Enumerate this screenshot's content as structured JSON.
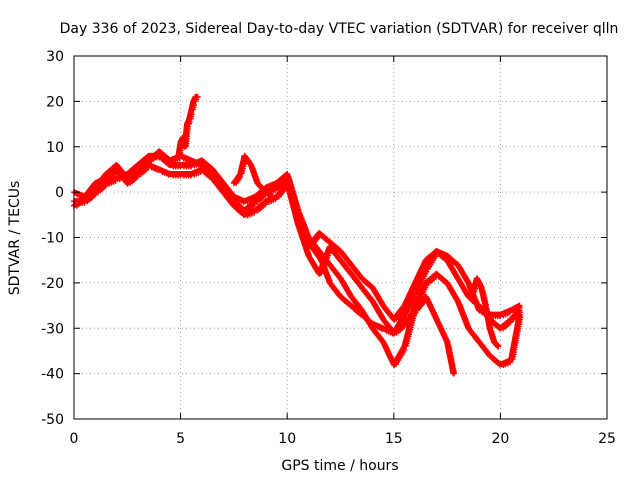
{
  "chart_data": {
    "type": "scatter",
    "title": "Day 336 of 2023, Sidereal Day-to-day VTEC variation (SDTVAR) for receiver qlln",
    "xlabel": "GPS time / hours",
    "ylabel": "SDTVAR / TECUs",
    "xlim": [
      0,
      25
    ],
    "ylim": [
      -50,
      30
    ],
    "x_ticks": [
      0,
      5,
      10,
      15,
      20,
      25
    ],
    "y_ticks": [
      -50,
      -40,
      -30,
      -20,
      -10,
      0,
      10,
      20,
      30
    ],
    "grid": true,
    "marker": "plus",
    "color": "#ff0000",
    "series": [
      {
        "x": [
          0.0,
          0.5,
          1.0,
          1.5,
          2.0,
          2.5,
          3.0,
          3.5,
          4.0,
          4.5,
          5.0,
          5.5,
          6.0,
          6.5,
          7.0,
          7.5,
          8.0,
          8.5,
          9.0,
          9.5,
          10.0,
          10.5,
          11.0,
          11.5,
          12.0,
          12.5,
          13.0,
          13.5,
          14.0,
          14.5,
          15.0,
          15.5,
          16.0,
          16.5,
          17.0,
          17.5,
          18.0,
          18.5,
          19.0,
          19.5,
          20.0,
          20.5,
          20.9
        ],
        "y": [
          -2,
          -2,
          0,
          2,
          3,
          4,
          6,
          8,
          8,
          6,
          6,
          6,
          7,
          5,
          2,
          -1,
          -2,
          -1,
          1,
          2,
          4,
          -4,
          -10,
          -13,
          -16,
          -19,
          -23,
          -26,
          -30,
          -33,
          -38,
          -34,
          -25,
          -20,
          -18,
          -20,
          -24,
          -30,
          -33,
          -36,
          -38,
          -37,
          -27
        ]
      },
      {
        "x": [
          0.0,
          0.5,
          1.0,
          1.5,
          2.0,
          2.5,
          3.0,
          3.5,
          4.0,
          4.5,
          5.0,
          5.5,
          6.0,
          6.5,
          7.0,
          7.5,
          8.0,
          8.5,
          9.0,
          9.5,
          10.0,
          10.5,
          11.0,
          11.5,
          12.0,
          12.5,
          13.0,
          13.5,
          14.0,
          14.5,
          15.0,
          15.5,
          16.0,
          16.5,
          17.0,
          17.5,
          18.0,
          18.5,
          19.0,
          19.5,
          20.0,
          20.5,
          20.9
        ],
        "y": [
          0,
          -1,
          2,
          3,
          5,
          2,
          4,
          6,
          5,
          4,
          4,
          4,
          5,
          3,
          0,
          -3,
          -5,
          -4,
          -2,
          -1,
          2,
          -7,
          -14,
          -18,
          -12,
          -15,
          -18,
          -21,
          -24,
          -28,
          -31,
          -27,
          -22,
          -17,
          -13,
          -15,
          -19,
          -23,
          -25,
          -28,
          -30,
          -28,
          -26
        ]
      },
      {
        "x": [
          0.0,
          0.5,
          1.0,
          1.5,
          2.0,
          2.5,
          3.0,
          3.5,
          4.0,
          4.5,
          5.0,
          5.5,
          6.0,
          6.5,
          7.0,
          7.5,
          8.0,
          8.5,
          9.0,
          9.5,
          10.0,
          10.5,
          11.0,
          11.5,
          12.0,
          12.5,
          13.0,
          13.5,
          14.0,
          14.5,
          15.0,
          15.5,
          16.0,
          16.5,
          17.0,
          17.5,
          18.0,
          18.5,
          19.0,
          19.5,
          20.0,
          20.5,
          20.9
        ],
        "y": [
          -3,
          -1,
          1,
          4,
          6,
          3,
          5,
          7,
          9,
          7,
          8,
          7,
          6,
          4,
          1,
          -2,
          -4,
          -2,
          0,
          1,
          3,
          -5,
          -12,
          -9,
          -11,
          -13,
          -16,
          -19,
          -21,
          -25,
          -28,
          -25,
          -20,
          -15,
          -13,
          -14,
          -16,
          -20,
          -26,
          -27,
          -27,
          -26,
          -25
        ]
      },
      {
        "x": [
          4.9,
          5.0,
          5.1,
          5.2,
          5.3,
          5.4,
          5.5,
          5.6,
          5.7,
          5.8
        ],
        "y": [
          8,
          11,
          12,
          10,
          15,
          16,
          18,
          20,
          21,
          21
        ]
      },
      {
        "x": [
          10.5,
          10.8,
          11.0,
          11.3,
          11.6,
          12.0,
          12.5,
          13.0,
          13.5,
          14.0,
          14.5,
          15.0,
          15.5,
          16.0,
          16.5,
          17.0,
          17.5,
          17.8
        ],
        "y": [
          -4,
          -8,
          -11,
          -13,
          -15,
          -20,
          -23,
          -25,
          -27,
          -29,
          -30,
          -31,
          -29,
          -26,
          -23,
          -28,
          -33,
          -40
        ]
      },
      {
        "x": [
          7.5,
          7.8,
          8.0,
          8.3,
          8.6,
          9.0,
          9.3
        ],
        "y": [
          2,
          4,
          8,
          6,
          2,
          0,
          -1
        ]
      },
      {
        "x": [
          18.5,
          18.7,
          18.9,
          19.1,
          19.3,
          19.5,
          19.7,
          19.9
        ],
        "y": [
          -20,
          -22,
          -19,
          -21,
          -25,
          -30,
          -33,
          -34
        ]
      }
    ]
  }
}
